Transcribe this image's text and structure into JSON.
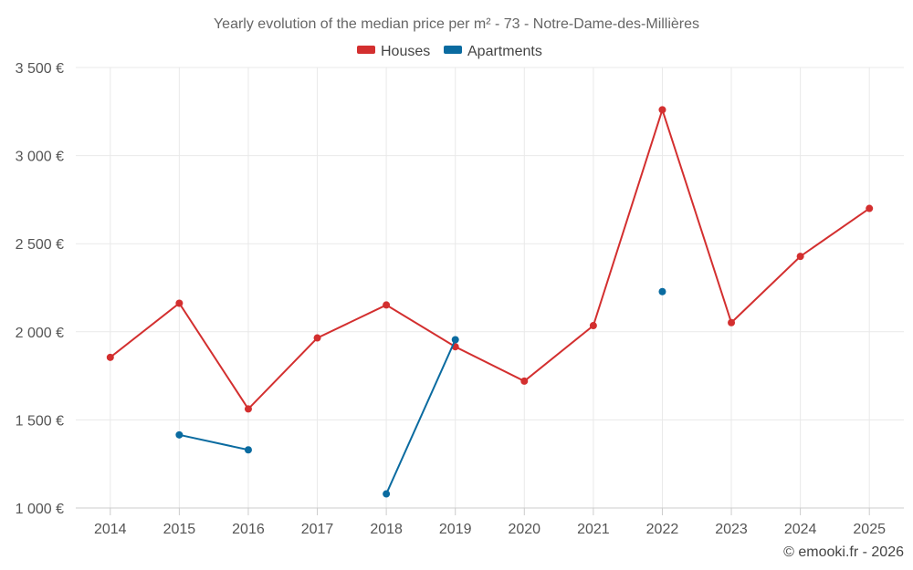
{
  "chart_data": {
    "type": "line",
    "title": "Yearly evolution of the median price per m² - 73 - Notre-Dame-des-Millières",
    "categories": [
      "2014",
      "2015",
      "2016",
      "2017",
      "2018",
      "2019",
      "2020",
      "2021",
      "2022",
      "2023",
      "2024",
      "2025"
    ],
    "ylim": [
      1000,
      3500
    ],
    "yticks": [
      1000,
      1500,
      2000,
      2500,
      3000,
      3500
    ],
    "ytick_labels": [
      "1 000 €",
      "1 500 €",
      "2 000 €",
      "2 500 €",
      "3 000 €",
      "3 500 €"
    ],
    "grid": true,
    "legend_position": "top-center",
    "series": [
      {
        "name": "Houses",
        "color": "#d32f2f",
        "values": [
          1855,
          2162,
          1562,
          1965,
          2152,
          1915,
          1720,
          2035,
          3260,
          2052,
          2428,
          2700
        ]
      },
      {
        "name": "Apartments",
        "color": "#0a6ba0",
        "values": [
          null,
          1415,
          1330,
          null,
          1080,
          1955,
          null,
          null,
          2228,
          null,
          null,
          null
        ]
      }
    ]
  },
  "credit": "© emooki.fr - 2026"
}
